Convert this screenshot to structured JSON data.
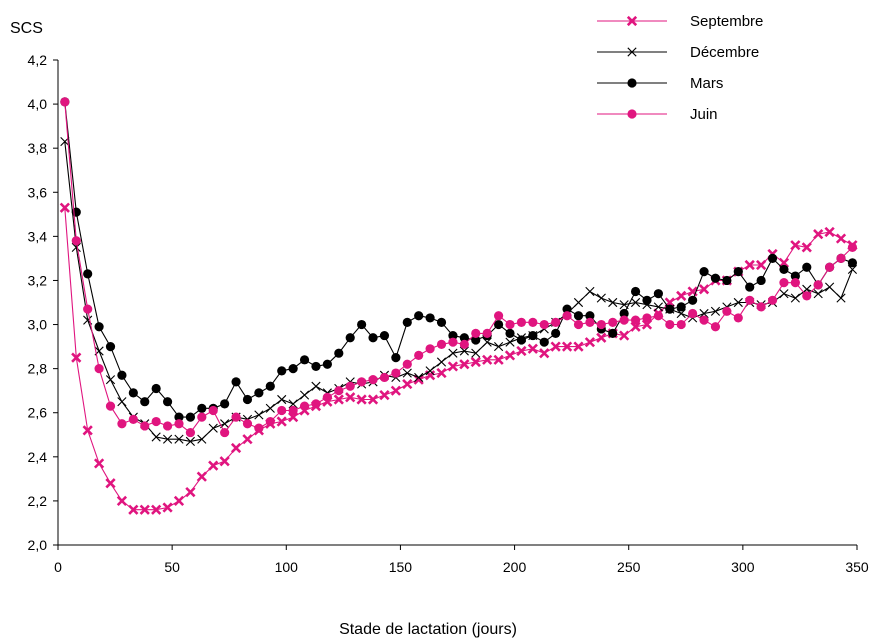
{
  "chart_data": {
    "type": "line",
    "title": "",
    "xlabel": "Stade de lactation (jours)",
    "ylabel": "SCS",
    "xlim": [
      0,
      350
    ],
    "ylim": [
      2.0,
      4.2
    ],
    "x_ticks": [
      0,
      50,
      100,
      150,
      200,
      250,
      300,
      350
    ],
    "y_ticks": [
      "2,0",
      "2,2",
      "2,4",
      "2,6",
      "2,8",
      "3,0",
      "3,2",
      "3,4",
      "3,6",
      "3,8",
      "4,0",
      "4,2"
    ],
    "grid": false,
    "legend_position": "top-right",
    "series": [
      {
        "name": "Septembre",
        "color": "#e0157f",
        "marker": "x-bold",
        "x": [
          3,
          8,
          13,
          18,
          23,
          28,
          33,
          38,
          43,
          48,
          53,
          58,
          63,
          68,
          73,
          78,
          83,
          88,
          93,
          98,
          103,
          108,
          113,
          118,
          123,
          128,
          133,
          138,
          143,
          148,
          153,
          158,
          163,
          168,
          173,
          178,
          183,
          188,
          193,
          198,
          203,
          208,
          213,
          218,
          223,
          228,
          233,
          238,
          243,
          248,
          253,
          258,
          263,
          268,
          273,
          278,
          283,
          288,
          293,
          298,
          303,
          308,
          313,
          318,
          323,
          328,
          333,
          338,
          343,
          348
        ],
        "y": [
          3.53,
          2.85,
          2.52,
          2.37,
          2.28,
          2.2,
          2.16,
          2.16,
          2.16,
          2.17,
          2.2,
          2.24,
          2.31,
          2.36,
          2.38,
          2.44,
          2.48,
          2.52,
          2.55,
          2.56,
          2.58,
          2.61,
          2.63,
          2.65,
          2.66,
          2.67,
          2.66,
          2.66,
          2.68,
          2.7,
          2.73,
          2.75,
          2.77,
          2.78,
          2.81,
          2.82,
          2.83,
          2.84,
          2.84,
          2.86,
          2.88,
          2.89,
          2.87,
          2.9,
          2.9,
          2.9,
          2.92,
          2.94,
          2.96,
          2.95,
          2.99,
          3.0,
          3.05,
          3.1,
          3.13,
          3.15,
          3.16,
          3.2,
          3.2,
          3.24,
          3.27,
          3.27,
          3.32,
          3.28,
          3.36,
          3.35,
          3.41,
          3.42,
          3.39,
          3.36
        ]
      },
      {
        "name": "Décembre",
        "color": "#000000",
        "marker": "x-thin",
        "x": [
          3,
          8,
          13,
          18,
          23,
          28,
          33,
          38,
          43,
          48,
          53,
          58,
          63,
          68,
          73,
          78,
          83,
          88,
          93,
          98,
          103,
          108,
          113,
          118,
          123,
          128,
          133,
          138,
          143,
          148,
          153,
          158,
          163,
          168,
          173,
          178,
          183,
          188,
          193,
          198,
          203,
          208,
          213,
          218,
          223,
          228,
          233,
          238,
          243,
          248,
          253,
          258,
          263,
          268,
          273,
          278,
          283,
          288,
          293,
          298,
          303,
          308,
          313,
          318,
          323,
          328,
          333,
          338,
          343,
          348
        ],
        "y": [
          3.83,
          3.35,
          3.02,
          2.88,
          2.75,
          2.65,
          2.58,
          2.55,
          2.49,
          2.48,
          2.48,
          2.47,
          2.48,
          2.53,
          2.55,
          2.58,
          2.57,
          2.59,
          2.62,
          2.66,
          2.64,
          2.68,
          2.72,
          2.69,
          2.71,
          2.74,
          2.73,
          2.74,
          2.77,
          2.76,
          2.78,
          2.76,
          2.79,
          2.83,
          2.87,
          2.88,
          2.87,
          2.92,
          2.9,
          2.92,
          2.94,
          2.95,
          2.98,
          3.01,
          3.05,
          3.1,
          3.15,
          3.12,
          3.1,
          3.09,
          3.1,
          3.09,
          3.08,
          3.07,
          3.05,
          3.03,
          3.05,
          3.06,
          3.08,
          3.1,
          3.1,
          3.09,
          3.1,
          3.14,
          3.12,
          3.16,
          3.14,
          3.17,
          3.12,
          3.25
        ]
      },
      {
        "name": "Mars",
        "color": "#000000",
        "marker": "circle",
        "x": [
          3,
          8,
          13,
          18,
          23,
          28,
          33,
          38,
          43,
          48,
          53,
          58,
          63,
          68,
          73,
          78,
          83,
          88,
          93,
          98,
          103,
          108,
          113,
          118,
          123,
          128,
          133,
          138,
          143,
          148,
          153,
          158,
          163,
          168,
          173,
          178,
          183,
          188,
          193,
          198,
          203,
          208,
          213,
          218,
          223,
          228,
          233,
          238,
          243,
          248,
          253,
          258,
          263,
          268,
          273,
          278,
          283,
          288,
          293,
          298,
          303,
          308,
          313,
          318,
          323,
          328,
          333,
          338,
          343,
          348
        ],
        "y": [
          4.01,
          3.51,
          3.23,
          2.99,
          2.9,
          2.77,
          2.69,
          2.65,
          2.71,
          2.65,
          2.58,
          2.58,
          2.62,
          2.62,
          2.64,
          2.74,
          2.66,
          2.69,
          2.72,
          2.79,
          2.8,
          2.84,
          2.81,
          2.82,
          2.87,
          2.94,
          3.0,
          2.94,
          2.95,
          2.85,
          3.01,
          3.04,
          3.03,
          3.01,
          2.95,
          2.94,
          2.93,
          2.95,
          3.0,
          2.96,
          2.93,
          2.95,
          2.92,
          2.96,
          3.07,
          3.04,
          3.04,
          2.98,
          2.96,
          3.05,
          3.15,
          3.11,
          3.14,
          3.07,
          3.08,
          3.11,
          3.24,
          3.21,
          3.2,
          3.24,
          3.17,
          3.2,
          3.3,
          3.25,
          3.22,
          3.26,
          3.18,
          3.26,
          3.3,
          3.28
        ]
      },
      {
        "name": "Juin",
        "color": "#e0157f",
        "marker": "circle",
        "x": [
          3,
          8,
          13,
          18,
          23,
          28,
          33,
          38,
          43,
          48,
          53,
          58,
          63,
          68,
          73,
          78,
          83,
          88,
          93,
          98,
          103,
          108,
          113,
          118,
          123,
          128,
          133,
          138,
          143,
          148,
          153,
          158,
          163,
          168,
          173,
          178,
          183,
          188,
          193,
          198,
          203,
          208,
          213,
          218,
          223,
          228,
          233,
          238,
          243,
          248,
          253,
          258,
          263,
          268,
          273,
          278,
          283,
          288,
          293,
          298,
          303,
          308,
          313,
          318,
          323,
          328,
          333,
          338,
          343,
          348
        ],
        "y": [
          4.01,
          3.38,
          3.07,
          2.8,
          2.63,
          2.55,
          2.57,
          2.54,
          2.56,
          2.54,
          2.55,
          2.51,
          2.58,
          2.61,
          2.51,
          2.58,
          2.55,
          2.53,
          2.56,
          2.61,
          2.61,
          2.63,
          2.64,
          2.67,
          2.7,
          2.72,
          2.74,
          2.75,
          2.76,
          2.78,
          2.82,
          2.86,
          2.89,
          2.91,
          2.92,
          2.91,
          2.96,
          2.96,
          3.04,
          3.0,
          3.01,
          3.01,
          3.0,
          3.01,
          3.04,
          3.0,
          3.01,
          3.0,
          3.01,
          3.02,
          3.02,
          3.03,
          3.04,
          3.0,
          3.0,
          3.05,
          3.02,
          2.99,
          3.06,
          3.03,
          3.11,
          3.08,
          3.11,
          3.19,
          3.19,
          3.13,
          3.18,
          3.26,
          3.3,
          3.35
        ]
      }
    ]
  }
}
